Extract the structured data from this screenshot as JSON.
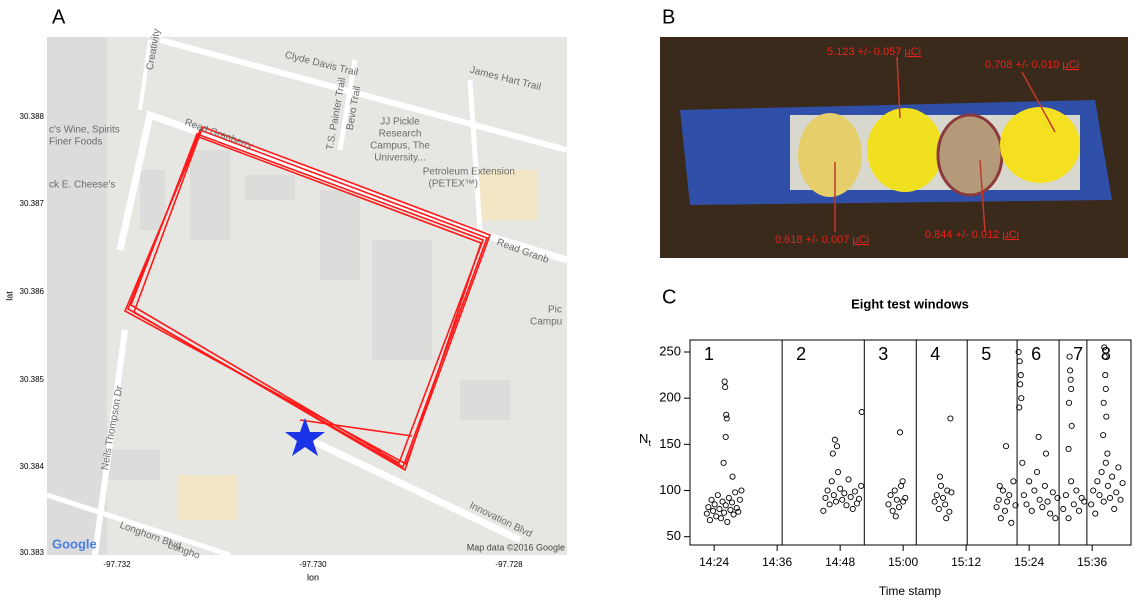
{
  "panels": {
    "a": "A",
    "b": "B",
    "c": "C"
  },
  "map": {
    "xlabel": "lon",
    "ylabel": "lat",
    "xticks": [
      "-97.732",
      "-97.730",
      "-97.728"
    ],
    "yticks": [
      "30.388",
      "30.387",
      "30.386",
      "30.385",
      "30.384",
      "30.383"
    ],
    "labels": [
      "Clyde Davis Trail",
      "James Hart Trail",
      "Creativity",
      "T.S. Painter Trail",
      "Bevo Trail",
      "JJ Pickle",
      "Research",
      "Campus, The",
      "University...",
      "Petroleum Extension",
      "(PETEX™)",
      "c's Wine, Spirits",
      "Finer Foods",
      "ck E. Cheese's",
      "Read Granberry",
      "Read Granb",
      "Pic",
      "Campu",
      "Neils Thompson Dr",
      "Longhorn Blvd",
      "Longho",
      "Innovation Blvd",
      "Google",
      "Map data ©2016 Google"
    ]
  },
  "photo": {
    "annotations": [
      {
        "text": "5.123 +/- 0.057 ",
        "unit": "µCi"
      },
      {
        "text": "0.708 +/- 0.010 ",
        "unit": "µCi"
      },
      {
        "text": "0.618 +/- 0.007 ",
        "unit": "µCi"
      },
      {
        "text": "0.844 +/- 0.012 ",
        "unit": "µCi"
      }
    ]
  },
  "chart_data": {
    "type": "scatter",
    "title": "Eight test windows",
    "xlabel": "Time stamp",
    "ylabel": "N",
    "ylabel_sub": "t",
    "xlim": [
      859.4,
      943.4
    ],
    "ylim": [
      41,
      263
    ],
    "xticks": [
      {
        "value": 864,
        "label": "14:24"
      },
      {
        "value": 876,
        "label": "14:36"
      },
      {
        "value": 888,
        "label": "14:48"
      },
      {
        "value": 900,
        "label": "15:00"
      },
      {
        "value": 912,
        "label": "15:12"
      },
      {
        "value": 924,
        "label": "15:24"
      },
      {
        "value": 936,
        "label": "15:36"
      }
    ],
    "yticks": [
      50,
      100,
      150,
      200,
      250
    ],
    "window_bounds": [
      876.95,
      892.6,
      902.5,
      912.2,
      921.7,
      929.7,
      935.0
    ],
    "window_labels": [
      "1",
      "2",
      "3",
      "4",
      "5",
      "6",
      "7",
      "8"
    ],
    "color": "#000000",
    "x": [
      862.6,
      862.9,
      863.2,
      863.5,
      863.8,
      864.1,
      864.4,
      864.7,
      865.0,
      865.3,
      865.6,
      865.9,
      866.2,
      866.5,
      866.8,
      867.1,
      867.4,
      867.7,
      868.0,
      868.3,
      868.6,
      868.9,
      869.2,
      866.0,
      866.1,
      866.3,
      866.4,
      866.2,
      865.8,
      867.5,
      884.8,
      885.2,
      885.6,
      886.0,
      886.4,
      886.8,
      887.2,
      887.6,
      888.0,
      888.4,
      888.8,
      889.2,
      889.6,
      890.0,
      890.4,
      890.8,
      891.2,
      891.6,
      892.0,
      887.0,
      887.4,
      886.6,
      892.1,
      897.2,
      897.6,
      898.0,
      898.4,
      898.8,
      899.2,
      899.6,
      900.0,
      900.4,
      898.6,
      899.9,
      899.4,
      906.0,
      906.4,
      906.8,
      907.2,
      907.6,
      908.0,
      908.4,
      908.8,
      909.2,
      907.0,
      908.2,
      909.0,
      917.8,
      918.2,
      918.6,
      919.0,
      919.4,
      919.8,
      920.2,
      920.6,
      921.0,
      921.4,
      919.6,
      918.4,
      922.0,
      922.2,
      922.4,
      922.3,
      922.5,
      922.1,
      923.0,
      923.5,
      924.0,
      924.5,
      925.0,
      925.5,
      926.0,
      926.5,
      927.0,
      927.5,
      928.0,
      928.5,
      929.0,
      929.4,
      922.7,
      925.8,
      927.2,
      930.5,
      931.0,
      931.5,
      932.0,
      932.5,
      933.0,
      933.5,
      934.0,
      934.5,
      931.7,
      931.8,
      931.9,
      932.0,
      931.6,
      932.1,
      931.5,
      935.8,
      936.2,
      936.6,
      937.0,
      937.4,
      937.8,
      938.2,
      938.6,
      939.0,
      939.4,
      939.8,
      940.2,
      940.6,
      941.0,
      941.4,
      941.8,
      938.3,
      938.4,
      938.5,
      938.6,
      938.2,
      938.7,
      938.1,
      938.9
    ],
    "values": [
      75,
      82,
      68,
      90,
      78,
      85,
      72,
      95,
      80,
      70,
      88,
      76,
      84,
      66,
      92,
      79,
      87,
      74,
      98,
      81,
      77,
      90,
      100,
      218,
      212,
      182,
      178,
      158,
      130,
      115,
      78,
      92,
      100,
      85,
      110,
      95,
      88,
      120,
      102,
      90,
      97,
      84,
      112,
      93,
      80,
      99,
      86,
      91,
      105,
      155,
      148,
      140,
      185,
      85,
      95,
      78,
      100,
      90,
      82,
      105,
      88,
      92,
      72,
      110,
      163,
      88,
      95,
      80,
      105,
      92,
      85,
      100,
      77,
      98,
      115,
      70,
      178,
      82,
      90,
      70,
      100,
      78,
      88,
      95,
      65,
      110,
      84,
      148,
      105,
      250,
      240,
      225,
      215,
      200,
      190,
      95,
      85,
      110,
      78,
      100,
      120,
      90,
      82,
      105,
      88,
      75,
      98,
      70,
      92,
      130,
      158,
      140,
      80,
      95,
      70,
      110,
      85,
      100,
      78,
      92,
      88,
      245,
      230,
      220,
      210,
      195,
      170,
      145,
      85,
      100,
      75,
      110,
      95,
      120,
      88,
      130,
      105,
      92,
      115,
      80,
      98,
      125,
      90,
      108,
      255,
      245,
      225,
      210,
      195,
      180,
      160,
      140
    ]
  }
}
